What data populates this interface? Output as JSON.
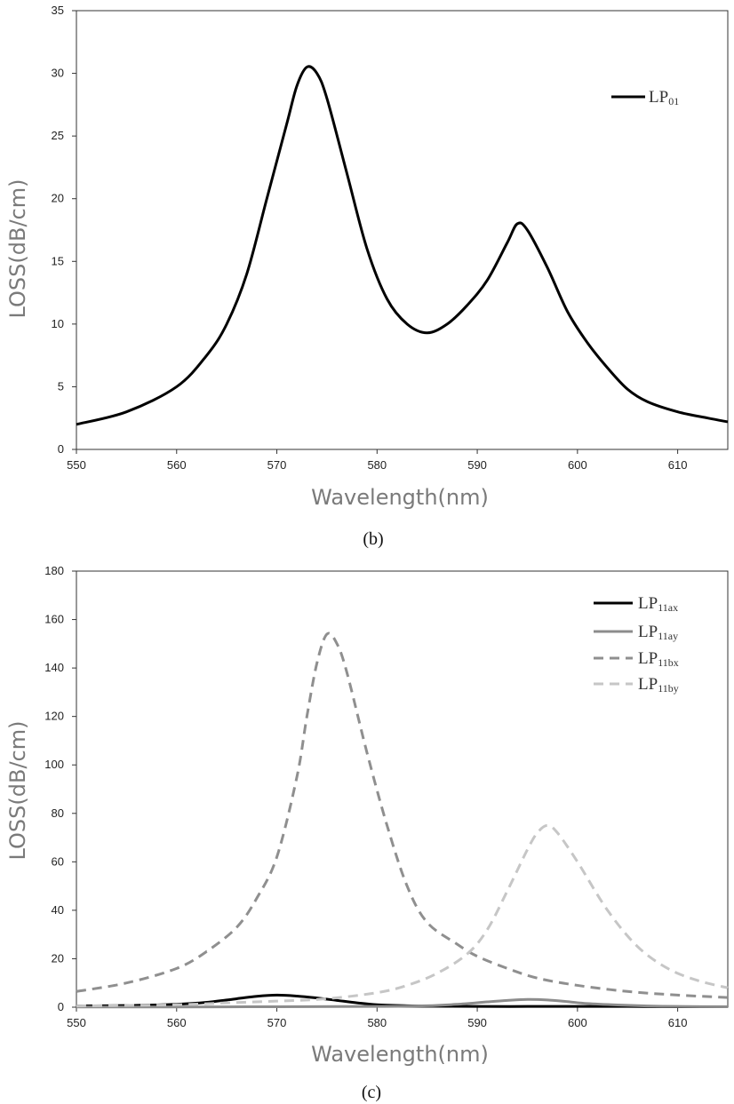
{
  "chart_data": [
    {
      "type": "line",
      "caption": "(b)",
      "xlabel": "Wavelength(nm)",
      "ylabel": "LOSS(dB/cm)",
      "xlim": [
        550,
        615
      ],
      "ylim": [
        0,
        35
      ],
      "xticks": [
        550,
        560,
        570,
        580,
        590,
        600,
        610
      ],
      "yticks": [
        0,
        5,
        10,
        15,
        20,
        25,
        30,
        35
      ],
      "legend_position": "top-right",
      "series": [
        {
          "name": "LP01",
          "name_main": "LP",
          "name_sub": "01",
          "color": "#000000",
          "dash": "solid",
          "x": [
            550,
            555,
            560,
            563,
            565,
            567,
            569,
            571,
            572,
            573,
            574,
            575,
            577,
            579,
            581,
            583,
            585,
            587,
            589,
            591,
            593,
            594,
            595,
            597,
            599,
            601,
            603,
            605,
            607,
            610,
            613,
            615
          ],
          "y": [
            2.0,
            3.0,
            5.0,
            7.5,
            10.0,
            14.0,
            20.0,
            26.0,
            29.0,
            30.5,
            30.0,
            28.0,
            22.0,
            16.0,
            12.0,
            10.0,
            9.3,
            10.0,
            11.5,
            13.5,
            16.5,
            18.0,
            17.5,
            14.5,
            11.0,
            8.5,
            6.5,
            4.8,
            3.8,
            3.0,
            2.5,
            2.2
          ]
        }
      ]
    },
    {
      "type": "line",
      "caption": "(c)",
      "xlabel": "Wavelength(nm)",
      "ylabel": "LOSS(dB/cm)",
      "xlim": [
        550,
        615
      ],
      "ylim": [
        0,
        180
      ],
      "xticks": [
        550,
        560,
        570,
        580,
        590,
        600,
        610
      ],
      "yticks": [
        0,
        20,
        40,
        60,
        80,
        100,
        120,
        140,
        160,
        180
      ],
      "legend_position": "top-right",
      "series": [
        {
          "name": "LP11ax",
          "name_main": "LP",
          "name_sub": "11ax",
          "color": "#000000",
          "dash": "solid",
          "x": [
            550,
            555,
            560,
            563,
            566,
            568,
            570,
            572,
            574,
            576,
            578,
            580,
            583,
            586,
            590,
            595,
            600,
            605,
            610,
            615
          ],
          "y": [
            0.5,
            0.7,
            1.2,
            2.0,
            3.5,
            4.5,
            5.0,
            4.6,
            3.8,
            2.8,
            1.8,
            1.0,
            0.6,
            0.4,
            0.3,
            0.3,
            0.3,
            0.3,
            0.2,
            0.2
          ]
        },
        {
          "name": "LP11ay",
          "name_main": "LP",
          "name_sub": "11ay",
          "color": "#8c8c8c",
          "dash": "solid",
          "x": [
            550,
            560,
            570,
            580,
            585,
            588,
            591,
            593,
            595,
            597,
            599,
            601,
            604,
            607,
            610,
            615
          ],
          "y": [
            0.1,
            0.1,
            0.2,
            0.3,
            0.6,
            1.2,
            2.2,
            2.8,
            3.2,
            3.0,
            2.3,
            1.5,
            0.9,
            0.5,
            0.3,
            0.2
          ]
        },
        {
          "name": "LP11bx",
          "name_main": "LP",
          "name_sub": "11bx",
          "color": "#8f8f8f",
          "dash": "dashed",
          "x": [
            550,
            555,
            560,
            563,
            566,
            568,
            570,
            572,
            573,
            574,
            575,
            576,
            577,
            579,
            581,
            583,
            585,
            588,
            590,
            593,
            596,
            600,
            605,
            610,
            615
          ],
          "y": [
            6.5,
            10.0,
            16.0,
            23.0,
            33.0,
            45.0,
            62.0,
            95.0,
            120.0,
            142.0,
            154.0,
            150.0,
            138.0,
            105.0,
            75.0,
            50.0,
            35.0,
            26.0,
            21.0,
            16.0,
            12.0,
            9.0,
            6.5,
            5.0,
            4.0
          ]
        },
        {
          "name": "LP11by",
          "name_main": "LP",
          "name_sub": "11by",
          "color": "#c6c6c6",
          "dash": "dashed",
          "x": [
            550,
            560,
            565,
            570,
            575,
            580,
            583,
            586,
            589,
            591,
            593,
            595,
            596,
            597,
            598,
            600,
            603,
            606,
            609,
            612,
            615
          ],
          "y": [
            0.5,
            1.0,
            1.8,
            2.5,
            3.5,
            6.0,
            9.0,
            14.0,
            22.0,
            32.0,
            48.0,
            65.0,
            72.0,
            75.0,
            72.0,
            60.0,
            40.0,
            25.0,
            16.0,
            11.0,
            8.0
          ]
        }
      ]
    }
  ]
}
